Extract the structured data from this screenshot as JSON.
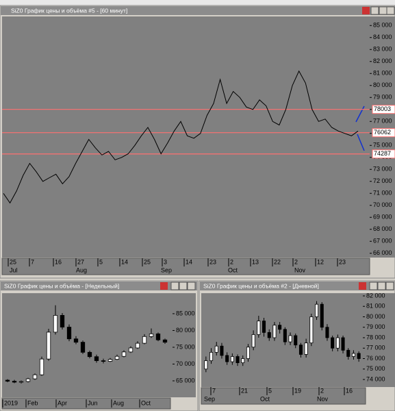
{
  "chart_data": [
    {
      "type": "line",
      "title": "SiZ0 График цены и объёма #5 - [60 минут]",
      "color": "#000000",
      "values": [
        71000,
        70200,
        71200,
        72500,
        73500,
        72800,
        72000,
        72300,
        72600,
        71800,
        72400,
        73500,
        74500,
        75500,
        74800,
        74200,
        74500,
        73800,
        74000,
        74300,
        75000,
        75800,
        76500,
        75500,
        74300,
        75200,
        76200,
        77000,
        75800,
        75600,
        76000,
        77500,
        78500,
        80500,
        78500,
        79500,
        79000,
        78200,
        78000,
        78800,
        78300,
        77000,
        76700,
        78000,
        80000,
        81200,
        80200,
        78000,
        77000,
        77200,
        76500,
        76200,
        76000,
        75800,
        76200
      ],
      "ylim": [
        65700,
        85700
      ],
      "yticks": [
        {
          "value": 66000,
          "label": "66 000"
        },
        {
          "value": 67000,
          "label": "67 000"
        },
        {
          "value": 68000,
          "label": "68 000"
        },
        {
          "value": 69000,
          "label": "69 000"
        },
        {
          "value": 70000,
          "label": "70 000"
        },
        {
          "value": 71000,
          "label": "71 000"
        },
        {
          "value": 72000,
          "label": "72 000"
        },
        {
          "value": 73000,
          "label": "73 000"
        },
        {
          "value": 74000,
          "label": "74 000"
        },
        {
          "value": 75000,
          "label": "75 000"
        },
        {
          "value": 76000,
          "label": "76 000"
        },
        {
          "value": 77000,
          "label": "77 000"
        },
        {
          "value": 78000,
          "label": "78 000"
        },
        {
          "value": 79000,
          "label": "79 000"
        },
        {
          "value": 80000,
          "label": "80 000"
        },
        {
          "value": 81000,
          "label": "81 000"
        },
        {
          "value": 82000,
          "label": "82 000"
        },
        {
          "value": 83000,
          "label": "83 000"
        },
        {
          "value": 84000,
          "label": "84 000"
        },
        {
          "value": 85000,
          "label": "85 000"
        }
      ],
      "hlines": [
        {
          "value": 78003,
          "color": "#ff7070"
        },
        {
          "value": 76062,
          "color": "#ff7070"
        },
        {
          "value": 74287,
          "color": "#ff7070"
        }
      ],
      "x_labels": [
        "25",
        "7",
        "16",
        "27",
        "5",
        "14",
        "25",
        "3",
        "14",
        "23",
        "2",
        "13",
        "22",
        "2",
        "12",
        "23"
      ],
      "month_labels": [
        "Jul",
        "Aug",
        "Sep",
        "Oct",
        "Nov"
      ]
    },
    {
      "type": "candlestick",
      "title": "SiZ0 График цены и объёма - [Недельный]",
      "up_color": "#ffffff",
      "down_color": "#000000",
      "open": [
        65200,
        64900,
        64600,
        64800,
        65600,
        66800,
        71500,
        79500,
        84500,
        81000,
        77500,
        76500,
        73500,
        72200,
        71000,
        70800,
        71400,
        72300,
        73600,
        74800,
        76200,
        78200,
        79000,
        77200
      ],
      "close": [
        64900,
        64600,
        64800,
        65600,
        66800,
        71500,
        79500,
        84500,
        81000,
        77500,
        76500,
        73500,
        72200,
        71000,
        70800,
        71400,
        72300,
        73600,
        74800,
        76200,
        78200,
        79000,
        77200,
        76500
      ],
      "high": [
        65500,
        65300,
        65100,
        65900,
        67200,
        72200,
        80500,
        87500,
        85200,
        81800,
        78300,
        77000,
        74000,
        72800,
        71600,
        71800,
        72800,
        74100,
        75300,
        76800,
        78900,
        80600,
        79400,
        77600
      ],
      "low": [
        64600,
        64300,
        64200,
        64500,
        65300,
        66500,
        71000,
        78800,
        80300,
        76800,
        75900,
        73000,
        71700,
        70400,
        70200,
        70600,
        71200,
        72000,
        73300,
        74500,
        75900,
        77800,
        76800,
        76000
      ],
      "ylim": [
        60100,
        90700
      ],
      "yticks": [
        {
          "value": 65000,
          "label": "65 000"
        },
        {
          "value": 70000,
          "label": "70 000"
        },
        {
          "value": 75000,
          "label": "75 000"
        },
        {
          "value": 80000,
          "label": "80 000"
        },
        {
          "value": 85000,
          "label": "85 000"
        }
      ],
      "x_labels": [
        "2019",
        "Feb",
        "Apr",
        "Jun",
        "Aug",
        "Oct"
      ]
    },
    {
      "type": "candlestick",
      "title": "SiZ0 График цены и объёма #2 - [Дневной]",
      "up_color": "#ffffff",
      "down_color": "#000000",
      "open": [
        75000,
        75800,
        76600,
        77200,
        76300,
        75700,
        76200,
        75600,
        76000,
        77100,
        78300,
        79600,
        78500,
        78000,
        79200,
        78800,
        77600,
        78200,
        77300,
        76400,
        77500,
        80000,
        81200,
        79000,
        78000,
        77000,
        78000,
        76800,
        76200,
        76500
      ],
      "close": [
        75800,
        76600,
        77200,
        76300,
        75700,
        76200,
        75600,
        76000,
        77100,
        78300,
        79600,
        78500,
        78000,
        79200,
        78800,
        77600,
        78200,
        77300,
        76400,
        77500,
        80000,
        81200,
        79000,
        78000,
        77000,
        78000,
        76800,
        76200,
        76500,
        76000
      ],
      "high": [
        76200,
        77000,
        77600,
        77500,
        76600,
        76500,
        76400,
        76300,
        77400,
        78700,
        80100,
        79900,
        78800,
        79500,
        79500,
        79000,
        78500,
        78400,
        77500,
        77900,
        80300,
        81500,
        81400,
        79300,
        78200,
        78300,
        78200,
        77000,
        76800,
        76700
      ],
      "low": [
        74700,
        75500,
        76300,
        76000,
        75400,
        75400,
        75300,
        75300,
        75700,
        76800,
        78000,
        78100,
        77700,
        77700,
        78400,
        77300,
        77300,
        77000,
        76100,
        76100,
        77200,
        79700,
        78700,
        77700,
        76700,
        76700,
        76500,
        75900,
        75900,
        75700
      ],
      "ylim": [
        73280,
        82260
      ],
      "yticks": [
        {
          "value": 74000,
          "label": "74 000"
        },
        {
          "value": 75000,
          "label": "75 000"
        },
        {
          "value": 76000,
          "label": "76 000"
        },
        {
          "value": 77000,
          "label": "77 000"
        },
        {
          "value": 78000,
          "label": "78 000"
        },
        {
          "value": 79000,
          "label": "79 000"
        },
        {
          "value": 80000,
          "label": "80 000"
        },
        {
          "value": 81000,
          "label": "81 000"
        },
        {
          "value": 82000,
          "label": "82 000"
        }
      ],
      "x_labels": [
        "7",
        "21",
        "5",
        "19",
        "2",
        "16"
      ],
      "month_labels": [
        "Sep",
        "Oct",
        "Nov"
      ]
    }
  ]
}
